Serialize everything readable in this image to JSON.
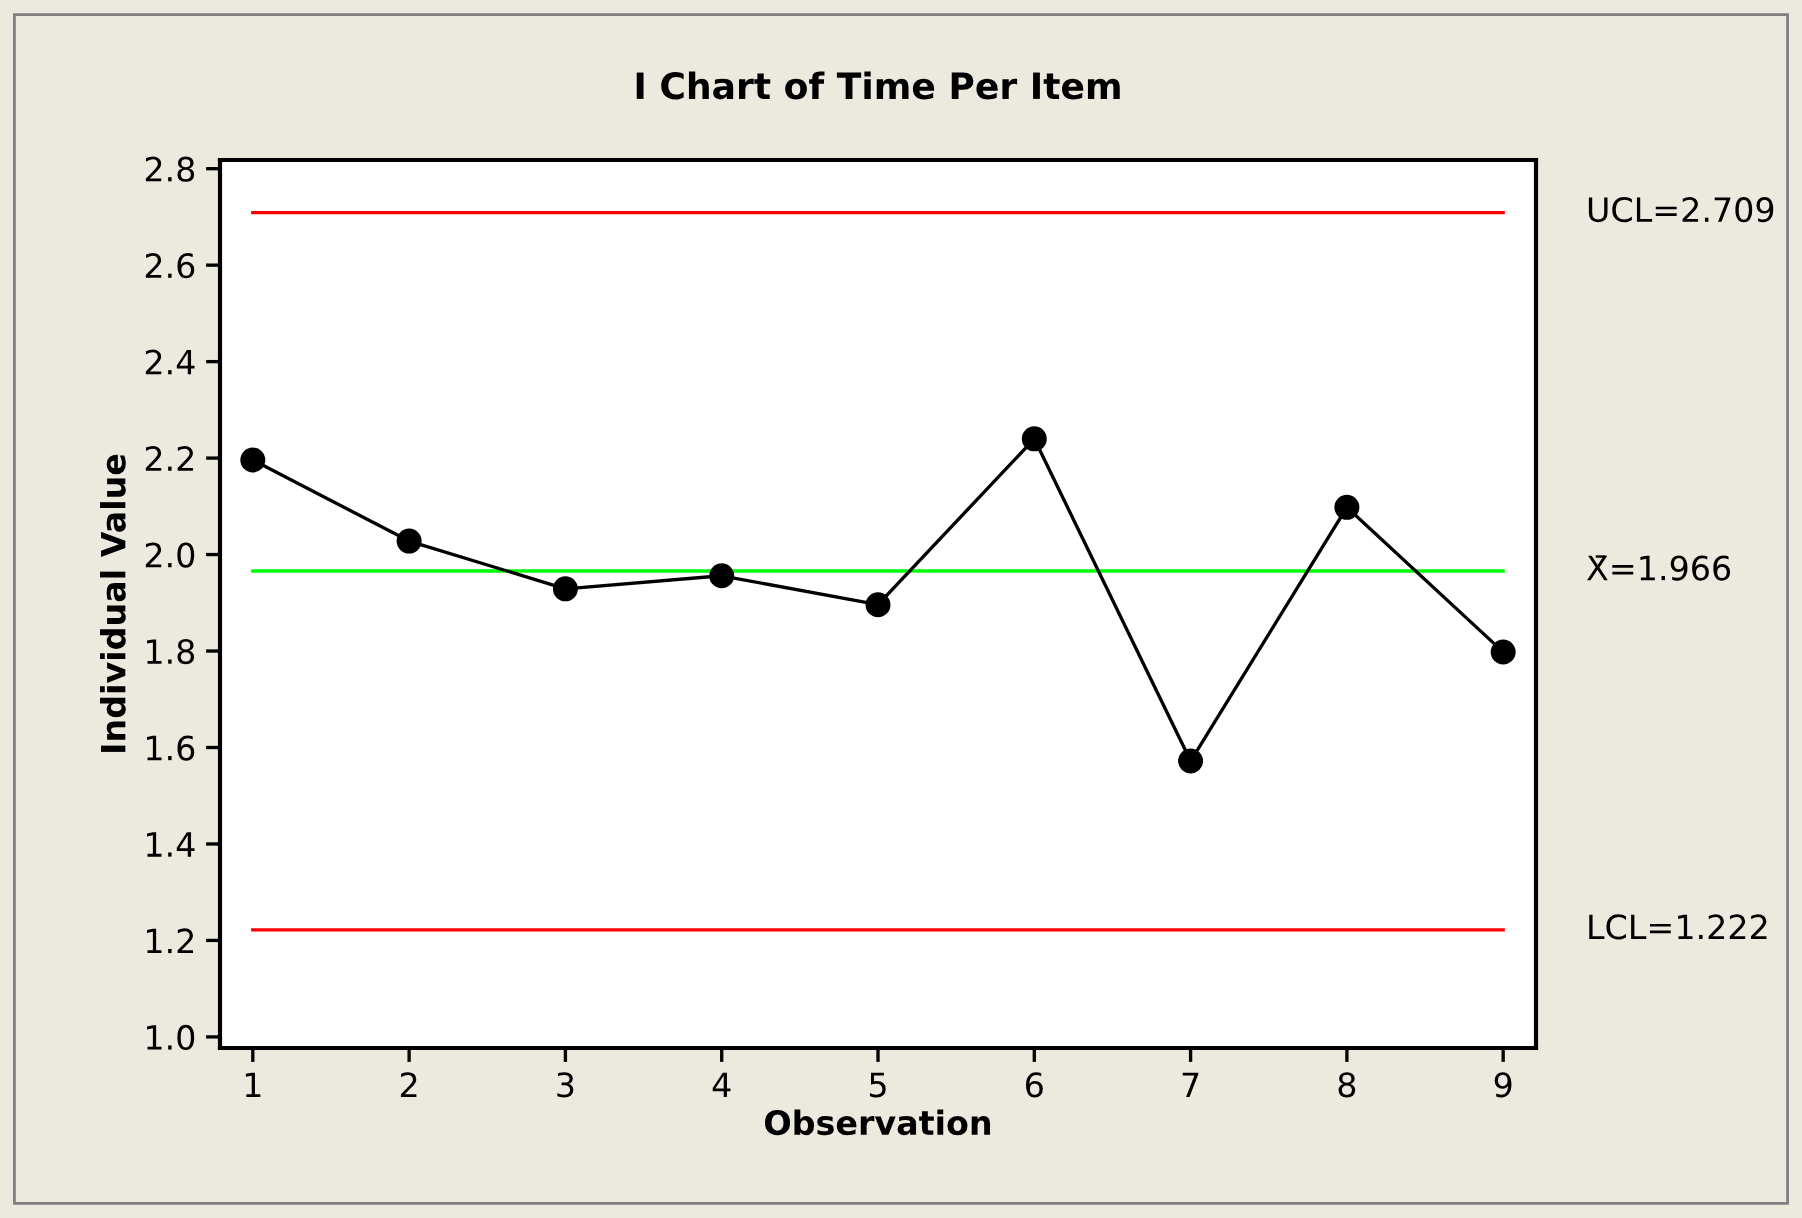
{
  "chart_data": {
    "type": "line",
    "title": "I Chart of Time Per Item",
    "xlabel": "Observation",
    "ylabel": "Individual Value",
    "x": [
      1,
      2,
      3,
      4,
      5,
      6,
      7,
      8,
      9
    ],
    "series": [
      {
        "color": "#000000",
        "values": [
          2.196,
          2.028,
          1.929,
          1.956,
          1.896,
          2.24,
          1.572,
          2.098,
          1.798
        ]
      }
    ],
    "marker": "circle",
    "line_style": "solid",
    "grid": false,
    "legend": false,
    "xlim": [
      0.79,
      9.21
    ],
    "xticks": [
      1,
      2,
      3,
      4,
      5,
      6,
      7,
      8,
      9
    ],
    "ylim": [
      0.977,
      2.818
    ],
    "yticks": [
      {
        "value": 1,
        "label": "1.0"
      },
      1.2,
      1.4,
      1.6,
      1.8,
      {
        "value": 2,
        "label": "2.0"
      },
      2.2,
      2.4,
      2.6,
      2.8
    ],
    "ref_lines": [
      {
        "axis": "y",
        "value": 2.709,
        "label": "UCL=2.709",
        "color": "#ff0000"
      },
      {
        "axis": "y",
        "value": 1.966,
        "label": "X̄=1.966",
        "color": "#00ff00"
      },
      {
        "axis": "y",
        "value": 1.222,
        "label": "LCL=1.222",
        "color": "#ff0000"
      }
    ]
  }
}
